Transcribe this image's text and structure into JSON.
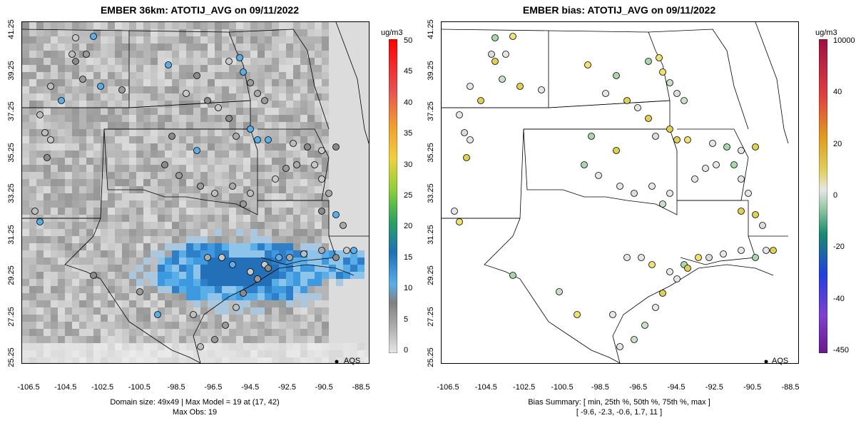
{
  "left_panel": {
    "title": "EMBER 36km: ATOTIJ_AVG on 09/11/2022",
    "unit": "ug/m3",
    "colorbar_ticks": [
      "50",
      "45",
      "40",
      "35",
      "30",
      "25",
      "20",
      "15",
      "10",
      "5",
      "0"
    ],
    "caption_line1": "Domain size: 49x49 | Max Model = 19 at (17, 42)",
    "caption_line2": "Max Obs: 19",
    "legend": "AQS"
  },
  "right_panel": {
    "title": "EMBER bias: ATOTIJ_AVG on 09/11/2022",
    "unit": "ug/m3",
    "colorbar_ticks": [
      "10000",
      "40",
      "20",
      "0",
      "-20",
      "-40",
      "-450"
    ],
    "caption_line1": "Bias Summary: [ min, 25th %, 50th %, 75th %, max ]",
    "caption_line2": "[ -9.6,  -2.3,  -0.6,  1.7,  11 ]",
    "legend": "AQS"
  },
  "axes": {
    "x_ticks": [
      "-106.5",
      "-104.5",
      "-102.5",
      "-100.5",
      "-98.5",
      "-96.5",
      "-94.5",
      "-92.5",
      "-90.5",
      "-88.5"
    ],
    "y_ticks": [
      "41.25",
      "39.25",
      "37.25",
      "35.25",
      "33.25",
      "31.25",
      "29.25",
      "27.25",
      "25.25"
    ]
  },
  "colors": {
    "conc_scale": [
      "#e6e6e6",
      "#c9c9c9",
      "#a8a8a8",
      "#8a8a8a",
      "#5aaee8",
      "#2f8fd8",
      "#1f6fb8",
      "#2ba360",
      "#8bcf3a",
      "#f0d040",
      "#f0a030",
      "#e85050"
    ],
    "bias_scale": [
      "#6a1a8a",
      "#4020d0",
      "#2040e0",
      "#1a8a70",
      "#6cc088",
      "#e6e6e6",
      "#e6e6e6",
      "#e0c040",
      "#e0a020",
      "#e04040",
      "#a01040"
    ]
  }
}
